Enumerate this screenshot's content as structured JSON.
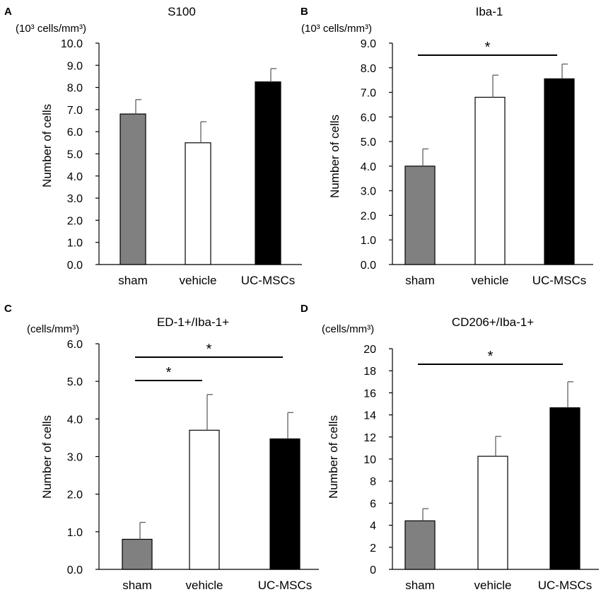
{
  "chart_data": [
    {
      "type": "bar",
      "panel": "A",
      "title": "S100",
      "unit_label": "(10³ cells/mm³)",
      "ylabel": "Number of cells",
      "categories": [
        "sham",
        "vehicle",
        "UC-MSCs"
      ],
      "values": [
        6.8,
        5.5,
        8.25
      ],
      "errors": [
        0.65,
        0.95,
        0.6
      ],
      "ylim": [
        0,
        10
      ],
      "yticks": [
        "0.0",
        "1.0",
        "2.0",
        "3.0",
        "4.0",
        "5.0",
        "6.0",
        "7.0",
        "8.0",
        "9.0",
        "10.0"
      ],
      "significance": [],
      "colors": [
        "#808080",
        "#ffffff",
        "#000000"
      ]
    },
    {
      "type": "bar",
      "panel": "B",
      "title": "Iba-1",
      "unit_label": "(10³ cells/mm³)",
      "ylabel": "Number of cells",
      "categories": [
        "sham",
        "vehicle",
        "UC-MSCs"
      ],
      "values": [
        4.0,
        6.8,
        7.55
      ],
      "errors": [
        0.7,
        0.9,
        0.6
      ],
      "ylim": [
        0,
        9
      ],
      "yticks": [
        "0.0",
        "1.0",
        "2.0",
        "3.0",
        "4.0",
        "5.0",
        "6.0",
        "7.0",
        "8.0",
        "9.0"
      ],
      "significance": [
        {
          "from": 0,
          "to": 2,
          "label": "*"
        }
      ],
      "colors": [
        "#808080",
        "#ffffff",
        "#000000"
      ]
    },
    {
      "type": "bar",
      "panel": "C",
      "title": "ED-1+/Iba-1+",
      "unit_label": "(cells/mm³)",
      "ylabel": "Number of cells",
      "categories": [
        "sham",
        "vehicle",
        "UC-MSCs"
      ],
      "values": [
        0.8,
        3.7,
        3.47
      ],
      "errors": [
        0.45,
        0.95,
        0.7
      ],
      "ylim": [
        0,
        6
      ],
      "yticks": [
        "0.0",
        "1.0",
        "2.0",
        "3.0",
        "4.0",
        "5.0",
        "6.0"
      ],
      "significance": [
        {
          "from": 0,
          "to": 1,
          "label": "*"
        },
        {
          "from": 0,
          "to": 2,
          "label": "*"
        }
      ],
      "colors": [
        "#808080",
        "#ffffff",
        "#000000"
      ]
    },
    {
      "type": "bar",
      "panel": "D",
      "title": "CD206+/Iba-1+",
      "unit_label": "(cells/mm³)",
      "ylabel": "Number of cells",
      "categories": [
        "sham",
        "vehicle",
        "UC-MSCs"
      ],
      "values": [
        4.4,
        10.25,
        14.65
      ],
      "errors": [
        1.1,
        1.8,
        2.35
      ],
      "ylim": [
        0,
        20
      ],
      "yticks": [
        "0",
        "2",
        "4",
        "6",
        "8",
        "10",
        "12",
        "14",
        "16",
        "18",
        "20"
      ],
      "significance": [
        {
          "from": 0,
          "to": 2,
          "label": "*"
        }
      ],
      "colors": [
        "#808080",
        "#ffffff",
        "#000000"
      ]
    }
  ]
}
